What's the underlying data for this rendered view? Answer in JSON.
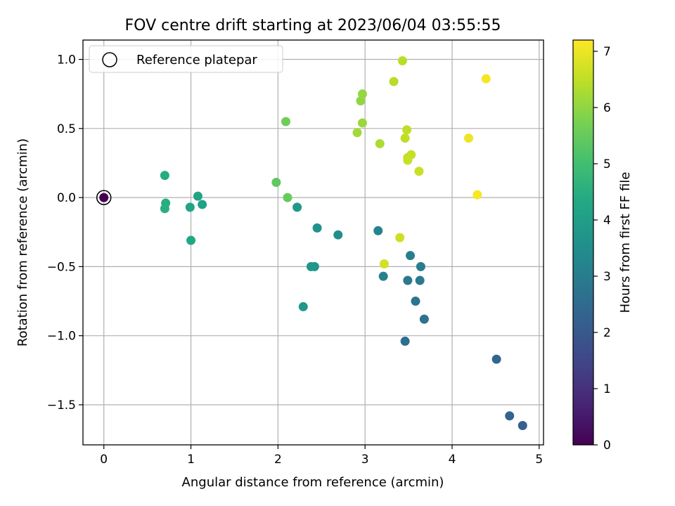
{
  "chart_data": {
    "type": "scatter",
    "title": "FOV centre drift starting at 2023/06/04 03:55:55",
    "xlabel": "Angular distance from reference (arcmin)",
    "ylabel": "Rotation from reference (arcmin)",
    "xlim": [
      -0.24,
      5.05
    ],
    "ylim": [
      -1.79,
      1.14
    ],
    "xticks": [
      0,
      1,
      2,
      3,
      4,
      5
    ],
    "xtick_labels": [
      "0",
      "1",
      "2",
      "3",
      "4",
      "5"
    ],
    "yticks": [
      -1.5,
      -1.0,
      -0.5,
      0.0,
      0.5,
      1.0
    ],
    "ytick_labels": [
      "−1.5",
      "−1.0",
      "−0.5",
      "0.0",
      "0.5",
      "1.0"
    ],
    "grid": true,
    "colormap": "viridis",
    "colorbar": {
      "label": "Hours from first FF file",
      "range": [
        0,
        7.2
      ],
      "ticks": [
        0,
        1,
        2,
        3,
        4,
        5,
        6,
        7
      ],
      "tick_labels": [
        "0",
        "1",
        "2",
        "3",
        "4",
        "5",
        "6",
        "7"
      ]
    },
    "legend": {
      "location": "upper-left",
      "entries": [
        "Reference platepar"
      ]
    },
    "reference_point": {
      "x": 0.0,
      "y": 0.0,
      "hours": 0.0
    },
    "points": [
      {
        "x": 4.81,
        "y": -1.65,
        "hours": 2.2
      },
      {
        "x": 4.66,
        "y": -1.58,
        "hours": 2.3
      },
      {
        "x": 4.51,
        "y": -1.17,
        "hours": 2.4
      },
      {
        "x": 3.46,
        "y": -1.04,
        "hours": 2.6
      },
      {
        "x": 3.68,
        "y": -0.88,
        "hours": 2.7
      },
      {
        "x": 3.58,
        "y": -0.75,
        "hours": 2.8
      },
      {
        "x": 3.49,
        "y": -0.6,
        "hours": 2.9
      },
      {
        "x": 3.63,
        "y": -0.6,
        "hours": 2.95
      },
      {
        "x": 3.64,
        "y": -0.5,
        "hours": 3.0
      },
      {
        "x": 3.52,
        "y": -0.42,
        "hours": 3.05
      },
      {
        "x": 3.21,
        "y": -0.57,
        "hours": 3.1
      },
      {
        "x": 3.15,
        "y": -0.24,
        "hours": 3.2
      },
      {
        "x": 2.69,
        "y": -0.27,
        "hours": 3.5
      },
      {
        "x": 2.45,
        "y": -0.22,
        "hours": 3.6
      },
      {
        "x": 2.42,
        "y": -0.5,
        "hours": 3.7
      },
      {
        "x": 2.38,
        "y": -0.5,
        "hours": 3.75
      },
      {
        "x": 2.29,
        "y": -0.79,
        "hours": 3.8
      },
      {
        "x": 2.22,
        "y": -0.07,
        "hours": 3.85
      },
      {
        "x": 1.13,
        "y": -0.05,
        "hours": 4.1
      },
      {
        "x": 1.08,
        "y": 0.01,
        "hours": 4.15
      },
      {
        "x": 0.99,
        "y": -0.07,
        "hours": 4.2
      },
      {
        "x": 1.0,
        "y": -0.31,
        "hours": 4.3
      },
      {
        "x": 0.7,
        "y": 0.16,
        "hours": 4.4
      },
      {
        "x": 0.71,
        "y": -0.04,
        "hours": 4.45
      },
      {
        "x": 0.7,
        "y": -0.08,
        "hours": 4.5
      },
      {
        "x": 1.98,
        "y": 0.11,
        "hours": 5.4
      },
      {
        "x": 2.11,
        "y": 0.0,
        "hours": 5.5
      },
      {
        "x": 2.09,
        "y": 0.55,
        "hours": 5.6
      },
      {
        "x": 2.95,
        "y": 0.7,
        "hours": 6.0
      },
      {
        "x": 2.97,
        "y": 0.75,
        "hours": 6.05
      },
      {
        "x": 2.97,
        "y": 0.54,
        "hours": 6.1
      },
      {
        "x": 2.91,
        "y": 0.47,
        "hours": 6.2
      },
      {
        "x": 3.17,
        "y": 0.39,
        "hours": 6.3
      },
      {
        "x": 3.33,
        "y": 0.84,
        "hours": 6.4
      },
      {
        "x": 3.43,
        "y": 0.99,
        "hours": 6.45
      },
      {
        "x": 3.48,
        "y": 0.49,
        "hours": 6.5
      },
      {
        "x": 3.46,
        "y": 0.43,
        "hours": 6.5
      },
      {
        "x": 3.49,
        "y": 0.29,
        "hours": 6.55
      },
      {
        "x": 3.53,
        "y": 0.31,
        "hours": 6.55
      },
      {
        "x": 3.49,
        "y": 0.27,
        "hours": 6.6
      },
      {
        "x": 3.62,
        "y": 0.19,
        "hours": 6.6
      },
      {
        "x": 3.4,
        "y": -0.29,
        "hours": 6.65
      },
      {
        "x": 3.22,
        "y": -0.48,
        "hours": 6.7
      },
      {
        "x": 4.19,
        "y": 0.43,
        "hours": 7.0
      },
      {
        "x": 4.39,
        "y": 0.86,
        "hours": 7.1
      },
      {
        "x": 4.29,
        "y": 0.02,
        "hours": 7.15
      }
    ]
  }
}
